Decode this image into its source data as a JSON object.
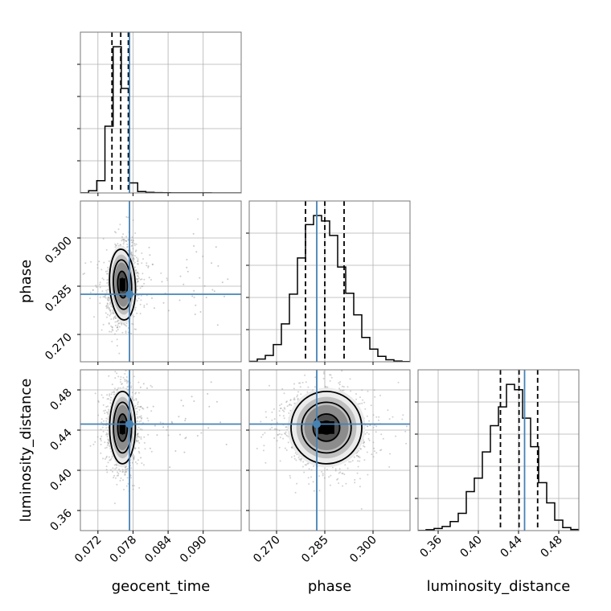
{
  "chart_data": {
    "type": "corner",
    "parameters": [
      "geocent_time",
      "phase",
      "luminosity_distance"
    ],
    "truths": {
      "geocent_time": 0.0774,
      "phase": 0.2825,
      "luminosity_distance": 0.446
    },
    "colors": {
      "truth": "#4682b4",
      "hist": "#000000",
      "grid": "#b0b0b0",
      "density": "#000000",
      "points": "#9a9a9a"
    },
    "grid": true,
    "diagonal": [
      {
        "param": "geocent_time",
        "range": [
          0.069,
          0.0965
        ],
        "bin_edges": [
          0.069,
          0.0704,
          0.0718,
          0.0732,
          0.0746,
          0.076,
          0.0774,
          0.0788,
          0.0802,
          0.0816,
          0.083,
          0.0844,
          0.0858,
          0.0872,
          0.0886,
          0.09,
          0.0914,
          0.0928,
          0.0942,
          0.0956,
          0.0965
        ],
        "counts": [
          1,
          40,
          220,
          1200,
          2630,
          1880,
          180,
          25,
          10,
          5,
          3,
          2,
          1,
          1,
          1,
          1,
          0,
          0,
          0,
          0
        ],
        "quantiles": [
          0.0744,
          0.0759,
          0.0772
        ],
        "xticks": [
          0.072,
          0.078,
          0.084,
          0.09
        ],
        "xticklabels": [
          "0.072",
          "0.078",
          "0.084",
          "0.090"
        ]
      },
      {
        "param": "phase",
        "range": [
          0.2615,
          0.3115
        ],
        "bin_edges": [
          0.2615,
          0.264,
          0.2665,
          0.269,
          0.2715,
          0.274,
          0.2765,
          0.279,
          0.2815,
          0.284,
          0.2865,
          0.289,
          0.2915,
          0.294,
          0.2965,
          0.299,
          0.3015,
          0.304,
          0.3065,
          0.309,
          0.3115
        ],
        "counts": [
          5,
          30,
          70,
          190,
          420,
          750,
          1150,
          1520,
          1620,
          1560,
          1400,
          1050,
          760,
          520,
          270,
          140,
          60,
          22,
          8,
          2
        ],
        "quantiles": [
          0.279,
          0.285,
          0.291
        ],
        "xticks": [
          0.27,
          0.285,
          0.3
        ],
        "xticklabels": [
          "0.270",
          "0.285",
          "0.300"
        ]
      },
      {
        "param": "luminosity_distance",
        "range": [
          0.34,
          0.5
        ],
        "bin_edges": [
          0.34,
          0.348,
          0.356,
          0.364,
          0.372,
          0.38,
          0.388,
          0.396,
          0.404,
          0.412,
          0.42,
          0.428,
          0.436,
          0.444,
          0.452,
          0.46,
          0.468,
          0.476,
          0.484,
          0.492,
          0.5
        ],
        "counts": [
          2,
          12,
          28,
          55,
          120,
          230,
          520,
          700,
          1050,
          1400,
          1650,
          1950,
          1880,
          1500,
          1120,
          640,
          370,
          140,
          40,
          15
        ],
        "quantiles": [
          0.422,
          0.4405,
          0.459
        ],
        "xticks": [
          0.36,
          0.4,
          0.44,
          0.48
        ],
        "xticklabels": [
          "0.36",
          "0.40",
          "0.44",
          "0.48"
        ]
      }
    ],
    "panels_2d": [
      {
        "x": "geocent_time",
        "y": "phase",
        "center": [
          0.0762,
          0.2855
        ],
        "sigma": [
          0.0011,
          0.0055
        ],
        "corr": 0.15
      },
      {
        "x": "geocent_time",
        "y": "luminosity_distance",
        "center": [
          0.0762,
          0.4425
        ],
        "sigma": [
          0.0011,
          0.018
        ],
        "corr": 0.0
      },
      {
        "x": "phase",
        "y": "luminosity_distance",
        "center": [
          0.2855,
          0.4425
        ],
        "sigma": [
          0.0055,
          0.018
        ],
        "corr": -0.05
      }
    ],
    "yticks": {
      "phase": [
        0.27,
        0.285,
        0.3
      ],
      "luminosity_distance": [
        0.36,
        0.4,
        0.44,
        0.48
      ]
    },
    "yticklabels": {
      "phase": [
        "0.270",
        "0.285",
        "0.300"
      ],
      "luminosity_distance": [
        "0.36",
        "0.40",
        "0.44",
        "0.48"
      ]
    },
    "xlabels": [
      "geocent_time",
      "phase",
      "luminosity_distance"
    ],
    "ylabels": [
      "phase",
      "luminosity_distance"
    ]
  }
}
